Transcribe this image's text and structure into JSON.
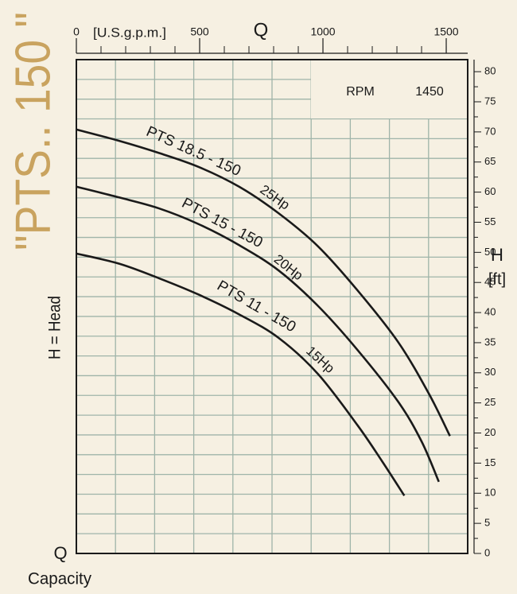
{
  "chart_data": {
    "type": "line",
    "title": "\"PTS.. 150 \"",
    "x_label": "Q",
    "x_unit": "[U.S.g.p.m.]",
    "y_label": "H",
    "y_unit": "[ft]",
    "side_label": "H = Head",
    "corner_label": "Q",
    "corner_sublabel": "Capacity",
    "rpm_label": "RPM",
    "rpm_value": 1450,
    "xlim": [
      0,
      1587
    ],
    "xticks": [
      0,
      500,
      1000,
      1500
    ],
    "ylim": [
      0,
      82
    ],
    "yticks": [
      0,
      5,
      10,
      15,
      20,
      25,
      30,
      35,
      40,
      45,
      50,
      55,
      60,
      65,
      70,
      75,
      80
    ],
    "series": [
      {
        "name": "PTS 18.5 - 150",
        "power": "25Hp",
        "color": "#1a1a1a",
        "x": [
          0,
          175,
          335,
          495,
          660,
          820,
          980,
          1140,
          1305,
          1430,
          1515
        ],
        "values": [
          70.4,
          68.5,
          66.5,
          64.2,
          60.9,
          56.5,
          51.0,
          43.7,
          35.1,
          26.5,
          19.5
        ]
      },
      {
        "name": "PTS 15 - 150",
        "power": "20Hp",
        "color": "#1a1a1a",
        "x": [
          0,
          175,
          335,
          495,
          660,
          820,
          980,
          1140,
          1305,
          1400,
          1470
        ],
        "values": [
          60.9,
          59.1,
          57.3,
          54.7,
          51.2,
          47.0,
          41.1,
          33.8,
          25.2,
          18.6,
          11.9
        ]
      },
      {
        "name": "PTS 11 - 150",
        "power": "15Hp",
        "color": "#1a1a1a",
        "x": [
          0,
          175,
          335,
          495,
          660,
          820,
          980,
          1140,
          1240,
          1330
        ],
        "values": [
          49.8,
          48.1,
          45.7,
          43.0,
          39.7,
          35.8,
          29.8,
          21.3,
          15.3,
          9.6
        ]
      }
    ]
  }
}
